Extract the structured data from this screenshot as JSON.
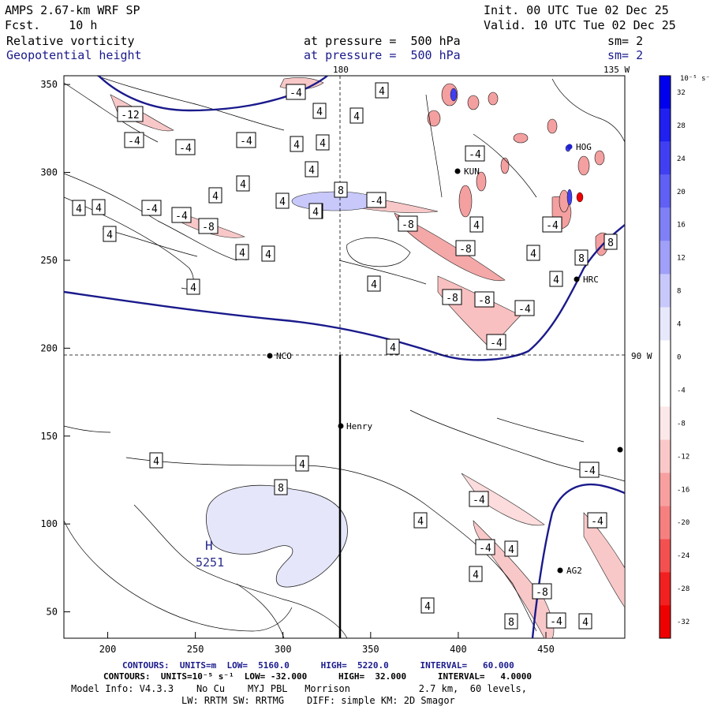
{
  "header": {
    "model": "AMPS 2.67-km WRF SP",
    "fcst": "Fcst.    10 h",
    "init": "Init. 00 UTC Tue 02 Dec 25",
    "valid": "Valid. 10 UTC Tue 02 Dec 25",
    "field1": "Relative vorticity",
    "field2": "Geopotential height",
    "pressure1": "at pressure =  500 hPa",
    "pressure2": "at pressure =  500 hPa",
    "sm1": "sm= 2",
    "sm2": "sm= 2",
    "lon_180": "180",
    "lon_135w": "135 W",
    "lat_90w": "90 W"
  },
  "map": {
    "stations": [
      {
        "name": "NCO"
      },
      {
        "name": "Henry"
      },
      {
        "name": "KUN"
      },
      {
        "name": "HRC"
      },
      {
        "name": "AG2"
      },
      {
        "name": "HOG"
      }
    ],
    "high_label": "H",
    "high_value": "5251",
    "contour_labels": [
      "-4",
      "-12",
      "-4",
      "-4",
      "-4",
      "4",
      "4",
      "4",
      "4",
      "4",
      "4",
      "4",
      "4",
      "4",
      "4",
      "-4",
      "-4",
      "-8",
      "4",
      "4",
      "8",
      "-4",
      "-8",
      "4",
      "4",
      "4",
      "-8",
      "4",
      "-8",
      "-8",
      "-4",
      "-4",
      "4",
      "4",
      "4",
      "4",
      "4",
      "8",
      "8",
      "-4",
      "-4",
      "4",
      "8",
      "4",
      "8",
      "4",
      "4",
      "4",
      "-4",
      "-4",
      "4",
      "-8",
      "4",
      "-4",
      "4",
      "-4",
      "4",
      "-4",
      "4",
      "8"
    ]
  },
  "axes": {
    "x_ticks": [
      "200",
      "250",
      "300",
      "350",
      "400",
      "450"
    ],
    "y_ticks": [
      "350",
      "300",
      "250",
      "200",
      "150",
      "100",
      "50"
    ],
    "x_range": [
      175,
      495
    ],
    "y_range": [
      35,
      355
    ]
  },
  "colorbar": {
    "unit": "10⁻⁵ s⁻¹",
    "labels": [
      "32",
      "28",
      "24",
      "20",
      "16",
      "12",
      "8",
      "4",
      "0",
      "-4",
      "-8",
      "-12",
      "-16",
      "-20",
      "-24",
      "-28",
      "-32"
    ],
    "colors": [
      "#0000ee",
      "#2020f0",
      "#4040f2",
      "#6060f4",
      "#8080f6",
      "#a0a0f8",
      "#c8c8fa",
      "#e8e8fc",
      "#ffffff",
      "#ffffff",
      "#fce8e8",
      "#fac8c8",
      "#f8a0a0",
      "#f68080",
      "#f45050",
      "#f22020",
      "#ee0000"
    ]
  },
  "footer": {
    "line1_contours": "CONTOURS:  UNITS=m  LOW=  5160.0      HIGH=  5220.0      INTERVAL=   60.000",
    "line2_contours": "CONTOURS:  UNITS=10⁻⁵ s⁻¹  LOW= -32.000      HIGH=  32.000      INTERVAL=   4.0000",
    "line3_model": "Model Info: V4.3.3    No Cu    MYJ PBL   Morrison            2.7 km,  60 levels,",
    "line4_model": "LW: RRTM SW: RRTMG    DIFF: simple KM: 2D Smagor"
  }
}
